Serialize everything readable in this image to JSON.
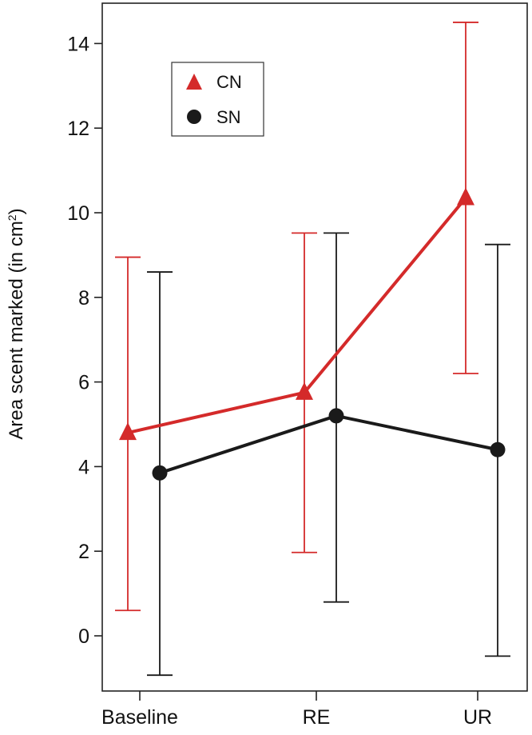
{
  "chart_data": {
    "type": "line",
    "categories": [
      "Baseline",
      "RE",
      "UR"
    ],
    "ylabel": {
      "prefix": "Area scent marked (in cm",
      "superscript": "2",
      "suffix": ")"
    },
    "ylim": [
      -1.3,
      14.8
    ],
    "yticks": [
      "0",
      "2",
      "4",
      "6",
      "8",
      "10",
      "12",
      "14"
    ],
    "grid": false,
    "legend_position": "top-left",
    "series": [
      {
        "name": "CN",
        "marker": "triangle",
        "color": "#d42a2a",
        "values": [
          4.8,
          5.75,
          10.35
        ],
        "err_low": [
          0.6,
          1.97,
          6.2
        ],
        "err_high": [
          8.95,
          9.52,
          14.5
        ]
      },
      {
        "name": "SN",
        "marker": "circle",
        "color": "#1a1a1a",
        "values": [
          3.85,
          5.2,
          4.4
        ],
        "err_low": [
          -0.93,
          0.8,
          -0.48
        ],
        "err_high": [
          8.6,
          9.52,
          9.25
        ]
      }
    ]
  }
}
